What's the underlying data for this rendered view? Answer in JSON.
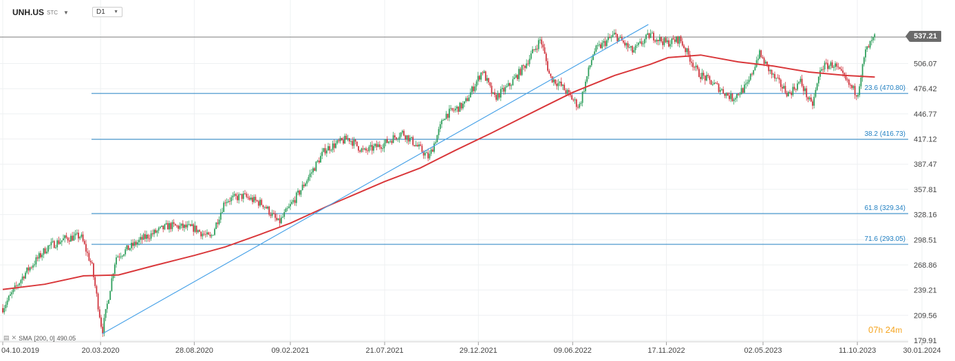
{
  "header": {
    "symbol": "UNH.US",
    "market": "STC",
    "timeframe": "D1"
  },
  "countdown": {
    "hours": "07",
    "h_unit": "h",
    "minutes": "24",
    "m_unit": "m"
  },
  "sma_legend": {
    "label": "SMA",
    "params": "[200,  0]",
    "value": "490.05"
  },
  "colors": {
    "bull": "#2e9e5b",
    "bear": "#d0343d",
    "sma": "#d9373a",
    "fib_line": "#1f7fc2",
    "trendline": "#4aa3e8",
    "price_line": "#7a7a7a",
    "grid": "#eef0f2",
    "countdown": "#f5a623"
  },
  "chart_data": {
    "type": "candlestick",
    "y_ticks": [
      "537.21",
      "506.07",
      "476.42",
      "446.77",
      "417.12",
      "387.47",
      "357.81",
      "328.16",
      "298.51",
      "268.86",
      "239.21",
      "209.56",
      "179.91"
    ],
    "ylim": [
      179.91,
      552
    ],
    "x_ticks": [
      "04.10.2019",
      "20.03.2020",
      "28.08.2020",
      "09.02.2021",
      "21.07.2021",
      "29.12.2021",
      "09.06.2022",
      "17.11.2022",
      "02.05.2023",
      "11.10.2023",
      "30.01.2024"
    ],
    "current_price": 537.21,
    "fib_levels": [
      {
        "ratio": "23.6",
        "value": 470.8,
        "label": "23.6 (470.80)"
      },
      {
        "ratio": "38.2",
        "value": 416.73,
        "label": "38.2 (416.73)"
      },
      {
        "ratio": "61.8",
        "value": 329.34,
        "label": "61.8 (329.34)"
      },
      {
        "ratio": "71.6",
        "value": 293.05,
        "label": "71.6 (293.05)"
      }
    ],
    "trendline": {
      "from": {
        "date": "2020-03-23",
        "price": 187.7
      },
      "to": {
        "date": "2022-10-17",
        "price": 552
      }
    },
    "price_path": [
      [
        "2019-10-04",
        218
      ],
      [
        "2019-11-10",
        258
      ],
      [
        "2019-12-20",
        290
      ],
      [
        "2020-01-20",
        300
      ],
      [
        "2020-02-15",
        303
      ],
      [
        "2020-03-05",
        268
      ],
      [
        "2020-03-23",
        190
      ],
      [
        "2020-04-15",
        278
      ],
      [
        "2020-06-01",
        300
      ],
      [
        "2020-07-15",
        315
      ],
      [
        "2020-08-28",
        312
      ],
      [
        "2020-09-25",
        300
      ],
      [
        "2020-10-20",
        345
      ],
      [
        "2020-11-20",
        350
      ],
      [
        "2020-12-25",
        340
      ],
      [
        "2021-01-20",
        318
      ],
      [
        "2021-02-25",
        355
      ],
      [
        "2021-04-10",
        405
      ],
      [
        "2021-05-20",
        418
      ],
      [
        "2021-06-15",
        402
      ],
      [
        "2021-07-21",
        412
      ],
      [
        "2021-08-20",
        425
      ],
      [
        "2021-09-10",
        412
      ],
      [
        "2021-10-05",
        395
      ],
      [
        "2021-11-01",
        445
      ],
      [
        "2021-12-05",
        458
      ],
      [
        "2022-01-05",
        498
      ],
      [
        "2022-01-25",
        465
      ],
      [
        "2022-02-20",
        480
      ],
      [
        "2022-03-20",
        505
      ],
      [
        "2022-04-15",
        535
      ],
      [
        "2022-05-01",
        490
      ],
      [
        "2022-05-20",
        480
      ],
      [
        "2022-06-20",
        455
      ],
      [
        "2022-07-15",
        520
      ],
      [
        "2022-08-20",
        540
      ],
      [
        "2022-09-20",
        520
      ],
      [
        "2022-10-20",
        540
      ],
      [
        "2022-11-17",
        530
      ],
      [
        "2022-12-10",
        535
      ],
      [
        "2023-01-10",
        495
      ],
      [
        "2023-02-10",
        480
      ],
      [
        "2023-03-10",
        465
      ],
      [
        "2023-04-05",
        480
      ],
      [
        "2023-04-25",
        518
      ],
      [
        "2023-05-20",
        490
      ],
      [
        "2023-06-15",
        470
      ],
      [
        "2023-07-05",
        485
      ],
      [
        "2023-07-25",
        455
      ],
      [
        "2023-08-10",
        502
      ],
      [
        "2023-09-01",
        505
      ],
      [
        "2023-09-25",
        482
      ],
      [
        "2023-10-11",
        470
      ],
      [
        "2023-10-25",
        520
      ],
      [
        "2023-11-10",
        537.21
      ]
    ],
    "sma200": [
      [
        "2019-10-04",
        240
      ],
      [
        "2019-12-15",
        246
      ],
      [
        "2020-02-20",
        256
      ],
      [
        "2020-04-20",
        257
      ],
      [
        "2020-06-20",
        268
      ],
      [
        "2020-08-28",
        280
      ],
      [
        "2020-10-20",
        290
      ],
      [
        "2020-12-20",
        305
      ],
      [
        "2021-02-09",
        318
      ],
      [
        "2021-04-20",
        340
      ],
      [
        "2021-07-21",
        367
      ],
      [
        "2021-09-20",
        383
      ],
      [
        "2021-11-20",
        404
      ],
      [
        "2022-01-20",
        424
      ],
      [
        "2022-04-20",
        455
      ],
      [
        "2022-06-09",
        472
      ],
      [
        "2022-08-20",
        492
      ],
      [
        "2022-10-20",
        505
      ],
      [
        "2022-11-20",
        513
      ],
      [
        "2023-01-15",
        516
      ],
      [
        "2023-03-20",
        508
      ],
      [
        "2023-05-20",
        503
      ],
      [
        "2023-07-20",
        496
      ],
      [
        "2023-09-20",
        492
      ],
      [
        "2023-11-10",
        490.05
      ]
    ]
  }
}
